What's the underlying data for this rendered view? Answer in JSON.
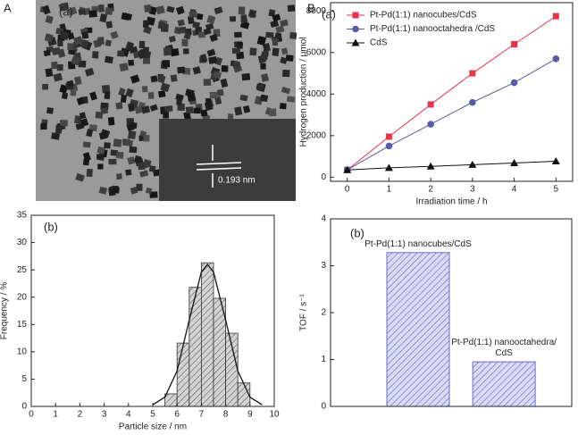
{
  "figure": {
    "panel_a": "A",
    "panel_b": "B"
  },
  "image": {
    "label": "(a)",
    "scale_label": "0.193 nm"
  },
  "chart_data": [
    {
      "type": "histogram",
      "panel_label": "(b)",
      "x_label": "Particle size / nm",
      "y_label": "Frequency / %",
      "bins": [
        5.5,
        6,
        6.5,
        7,
        7.5,
        8,
        8.5,
        9
      ],
      "values": [
        2.3,
        11.6,
        21.8,
        26.3,
        19.8,
        13.4,
        4.3
      ],
      "color": "#c8c8c8",
      "fit": {
        "x": [
          5,
          5.5,
          6,
          6.5,
          7,
          7.25,
          7.5,
          8,
          8.5,
          9,
          9.5
        ],
        "values": [
          0.3,
          1.7,
          6.5,
          15.8,
          24.6,
          26,
          24.6,
          15.8,
          6.5,
          1.7,
          0.3
        ]
      },
      "xlim": [
        0,
        10
      ],
      "xticks": [
        0,
        1,
        2,
        3,
        4,
        5,
        6,
        7,
        8,
        9,
        10
      ],
      "ylim": [
        0,
        35
      ],
      "yticks": [
        0,
        5,
        10,
        15,
        20,
        25,
        30,
        35
      ]
    },
    {
      "type": "line",
      "panel_label": "(a)",
      "x_label": "Irradiation time / h",
      "y_label": "Hydrogen production / μmol",
      "x": [
        0,
        1,
        2,
        3,
        4,
        5
      ],
      "series": [
        {
          "name": "Pt-Pd(1:1) nanocubes/CdS",
          "color": "#e8334a",
          "marker": "square",
          "values": [
            350,
            1950,
            3500,
            5000,
            6400,
            7750
          ]
        },
        {
          "name": "Pt-Pd(1:1) nanooctahedra /CdS",
          "color": "#5a5aa8",
          "marker": "circle",
          "values": [
            350,
            1500,
            2550,
            3600,
            4550,
            5700
          ]
        },
        {
          "name": "CdS",
          "color": "#111111",
          "marker": "triangle",
          "values": [
            350,
            450,
            520,
            600,
            680,
            770
          ]
        }
      ],
      "legend": "upper left",
      "xlim": [
        -0.4,
        5.4
      ],
      "xticks": [
        0,
        1,
        2,
        3,
        4,
        5
      ],
      "ylim": [
        -200,
        8400
      ],
      "yticks": [
        0,
        2000,
        4000,
        6000,
        8000
      ]
    },
    {
      "type": "bar",
      "panel_label": "(b)",
      "y_label": "TOF / s⁻¹",
      "categories": [
        "Pt-Pd(1:1) nanocubes/CdS",
        "Pt-Pd(1:1) nanooctahedra/ CdS"
      ],
      "values": [
        3.28,
        0.95
      ],
      "color": "#6a6ad0",
      "ylim": [
        0,
        4
      ],
      "yticks": [
        0,
        1,
        2,
        3,
        4
      ]
    }
  ]
}
